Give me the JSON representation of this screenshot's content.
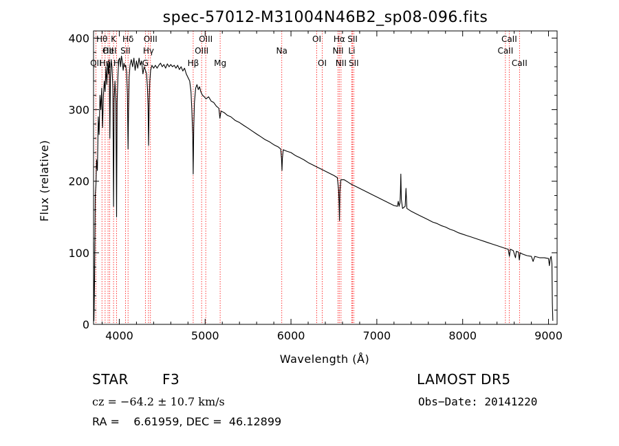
{
  "chart_data": {
    "type": "line",
    "title": "spec-57012-M31004N46B2_sp08-096.fits",
    "xlabel": "Wavelength (Å)",
    "ylabel": "Flux (relative)",
    "xlim": [
      3700,
      9100
    ],
    "ylim": [
      0,
      410
    ],
    "xticks": [
      4000,
      5000,
      6000,
      7000,
      8000,
      9000
    ],
    "xtick_labels": [
      "4000",
      "5000",
      "6000",
      "7000",
      "8000",
      "9000"
    ],
    "yticks": [
      0,
      100,
      200,
      300,
      400
    ],
    "ytick_labels": [
      "0",
      "100",
      "200",
      "300",
      "400"
    ],
    "grid": false,
    "series": [
      {
        "color": "#000000",
        "points": [
          [
            3700,
            115
          ],
          [
            3705,
            5
          ],
          [
            3712,
            60
          ],
          [
            3720,
            180
          ],
          [
            3728,
            195
          ],
          [
            3735,
            230
          ],
          [
            3745,
            215
          ],
          [
            3755,
            290
          ],
          [
            3765,
            265
          ],
          [
            3775,
            320
          ],
          [
            3785,
            300
          ],
          [
            3795,
            330
          ],
          [
            3805,
            275
          ],
          [
            3815,
            320
          ],
          [
            3825,
            340
          ],
          [
            3835,
            325
          ],
          [
            3845,
            360
          ],
          [
            3855,
            335
          ],
          [
            3865,
            365
          ],
          [
            3875,
            350
          ],
          [
            3880,
            370
          ],
          [
            3885,
            345
          ],
          [
            3890,
            260
          ],
          [
            3897,
            345
          ],
          [
            3905,
            370
          ],
          [
            3915,
            360
          ],
          [
            3925,
            330
          ],
          [
            3933,
            165
          ],
          [
            3940,
            315
          ],
          [
            3950,
            340
          ],
          [
            3960,
            310
          ],
          [
            3968,
            150
          ],
          [
            3975,
            310
          ],
          [
            3985,
            350
          ],
          [
            3995,
            370
          ],
          [
            4005,
            372
          ],
          [
            4015,
            360
          ],
          [
            4025,
            375
          ],
          [
            4035,
            368
          ],
          [
            4045,
            355
          ],
          [
            4055,
            365
          ],
          [
            4065,
            360
          ],
          [
            4075,
            362
          ],
          [
            4085,
            352
          ],
          [
            4095,
            320
          ],
          [
            4102,
            245
          ],
          [
            4108,
            300
          ],
          [
            4115,
            345
          ],
          [
            4125,
            362
          ],
          [
            4140,
            370
          ],
          [
            4155,
            360
          ],
          [
            4170,
            372
          ],
          [
            4185,
            355
          ],
          [
            4200,
            368
          ],
          [
            4215,
            358
          ],
          [
            4230,
            372
          ],
          [
            4245,
            362
          ],
          [
            4260,
            368
          ],
          [
            4275,
            350
          ],
          [
            4290,
            360
          ],
          [
            4305,
            355
          ],
          [
            4318,
            350
          ],
          [
            4328,
            330
          ],
          [
            4335,
            305
          ],
          [
            4341,
            250
          ],
          [
            4348,
            310
          ],
          [
            4355,
            340
          ],
          [
            4365,
            355
          ],
          [
            4380,
            362
          ],
          [
            4400,
            358
          ],
          [
            4420,
            362
          ],
          [
            4440,
            358
          ],
          [
            4460,
            362
          ],
          [
            4480,
            365
          ],
          [
            4500,
            360
          ],
          [
            4520,
            363
          ],
          [
            4540,
            358
          ],
          [
            4560,
            364
          ],
          [
            4580,
            360
          ],
          [
            4600,
            363
          ],
          [
            4620,
            360
          ],
          [
            4640,
            362
          ],
          [
            4660,
            358
          ],
          [
            4680,
            362
          ],
          [
            4700,
            356
          ],
          [
            4720,
            360
          ],
          [
            4740,
            354
          ],
          [
            4760,
            358
          ],
          [
            4780,
            350
          ],
          [
            4800,
            345
          ],
          [
            4820,
            340
          ],
          [
            4835,
            325
          ],
          [
            4845,
            300
          ],
          [
            4855,
            265
          ],
          [
            4861,
            210
          ],
          [
            4867,
            275
          ],
          [
            4875,
            310
          ],
          [
            4890,
            330
          ],
          [
            4905,
            335
          ],
          [
            4920,
            328
          ],
          [
            4935,
            332
          ],
          [
            4950,
            325
          ],
          [
            4970,
            320
          ],
          [
            4990,
            318
          ],
          [
            5010,
            315
          ],
          [
            5040,
            318
          ],
          [
            5070,
            312
          ],
          [
            5100,
            310
          ],
          [
            5130,
            305
          ],
          [
            5160,
            302
          ],
          [
            5172,
            288
          ],
          [
            5185,
            298
          ],
          [
            5220,
            296
          ],
          [
            5260,
            292
          ],
          [
            5300,
            290
          ],
          [
            5350,
            285
          ],
          [
            5400,
            282
          ],
          [
            5450,
            278
          ],
          [
            5500,
            274
          ],
          [
            5550,
            270
          ],
          [
            5600,
            266
          ],
          [
            5650,
            262
          ],
          [
            5700,
            258
          ],
          [
            5750,
            255
          ],
          [
            5800,
            251
          ],
          [
            5850,
            248
          ],
          [
            5880,
            245
          ],
          [
            5890,
            232
          ],
          [
            5895,
            215
          ],
          [
            5900,
            232
          ],
          [
            5910,
            244
          ],
          [
            5950,
            242
          ],
          [
            6000,
            240
          ],
          [
            6050,
            236
          ],
          [
            6100,
            233
          ],
          [
            6150,
            230
          ],
          [
            6200,
            226
          ],
          [
            6250,
            223
          ],
          [
            6300,
            220
          ],
          [
            6350,
            217
          ],
          [
            6400,
            214
          ],
          [
            6450,
            211
          ],
          [
            6500,
            208
          ],
          [
            6540,
            205
          ],
          [
            6555,
            188
          ],
          [
            6560,
            170
          ],
          [
            6565,
            145
          ],
          [
            6570,
            185
          ],
          [
            6580,
            202
          ],
          [
            6620,
            202
          ],
          [
            6660,
            199
          ],
          [
            6700,
            196
          ],
          [
            6750,
            193
          ],
          [
            6800,
            190
          ],
          [
            6850,
            187
          ],
          [
            6900,
            184
          ],
          [
            6950,
            181
          ],
          [
            7000,
            178
          ],
          [
            7050,
            175
          ],
          [
            7100,
            172
          ],
          [
            7150,
            169
          ],
          [
            7200,
            166
          ],
          [
            7240,
            165
          ],
          [
            7250,
            172
          ],
          [
            7260,
            165
          ],
          [
            7270,
            170
          ],
          [
            7275,
            185
          ],
          [
            7280,
            210
          ],
          [
            7285,
            175
          ],
          [
            7300,
            162
          ],
          [
            7330,
            165
          ],
          [
            7340,
            190
          ],
          [
            7345,
            175
          ],
          [
            7350,
            162
          ],
          [
            7400,
            158
          ],
          [
            7450,
            155
          ],
          [
            7500,
            152
          ],
          [
            7550,
            149
          ],
          [
            7600,
            146
          ],
          [
            7650,
            143
          ],
          [
            7700,
            141
          ],
          [
            7750,
            138
          ],
          [
            7800,
            136
          ],
          [
            7850,
            133
          ],
          [
            7900,
            131
          ],
          [
            7950,
            128
          ],
          [
            8000,
            126
          ],
          [
            8050,
            124
          ],
          [
            8100,
            122
          ],
          [
            8150,
            120
          ],
          [
            8200,
            118
          ],
          [
            8250,
            116
          ],
          [
            8300,
            114
          ],
          [
            8350,
            112
          ],
          [
            8400,
            110
          ],
          [
            8450,
            108
          ],
          [
            8500,
            106
          ],
          [
            8530,
            105
          ],
          [
            8545,
            95
          ],
          [
            8555,
            105
          ],
          [
            8590,
            103
          ],
          [
            8615,
            93
          ],
          [
            8625,
            102
          ],
          [
            8650,
            101
          ],
          [
            8660,
            90
          ],
          [
            8670,
            100
          ],
          [
            8700,
            98
          ],
          [
            8750,
            96
          ],
          [
            8800,
            95
          ],
          [
            8820,
            88
          ],
          [
            8840,
            95
          ],
          [
            8870,
            94
          ],
          [
            8900,
            93
          ],
          [
            8950,
            93
          ],
          [
            9000,
            92
          ],
          [
            9010,
            82
          ],
          [
            9020,
            92
          ],
          [
            9030,
            95
          ],
          [
            9040,
            85
          ],
          [
            9045,
            30
          ],
          [
            9050,
            5
          ]
        ]
      }
    ],
    "line_markers": {
      "color": "#ff0000",
      "lines": [
        {
          "x": 3727,
          "label": "OII",
          "row": 3
        },
        {
          "x": 3798,
          "label": "Hθ",
          "row": 1
        },
        {
          "x": 3835,
          "label": "Hη",
          "row": 3
        },
        {
          "x": 3869,
          "label": "OII",
          "row": 2
        },
        {
          "x": 3889,
          "label": "HeI",
          "row": 2
        },
        {
          "x": 3933,
          "label": "K",
          "row": 1
        },
        {
          "x": 3968,
          "label": "H",
          "row": 3
        },
        {
          "x": 4072,
          "label": "SII",
          "row": 2
        },
        {
          "x": 4102,
          "label": "Hδ",
          "row": 1
        },
        {
          "x": 4304,
          "label": "G",
          "row": 3
        },
        {
          "x": 4340,
          "label": "Hγ",
          "row": 2
        },
        {
          "x": 4363,
          "label": "OIII",
          "row": 1
        },
        {
          "x": 4861,
          "label": "Hβ",
          "row": 3
        },
        {
          "x": 4959,
          "label": "OIII",
          "row": 2
        },
        {
          "x": 5007,
          "label": "OIII",
          "row": 1
        },
        {
          "x": 5175,
          "label": "Mg",
          "row": 3
        },
        {
          "x": 5893,
          "label": "Na",
          "row": 2
        },
        {
          "x": 6300,
          "label": "OI",
          "row": 1
        },
        {
          "x": 6364,
          "label": "OI",
          "row": 3
        },
        {
          "x": 6548,
          "label": "NII",
          "row": 2
        },
        {
          "x": 6563,
          "label": "Hα",
          "row": 1
        },
        {
          "x": 6583,
          "label": "NII",
          "row": 3
        },
        {
          "x": 6708,
          "label": "Li",
          "row": 2
        },
        {
          "x": 6717,
          "label": "SII",
          "row": 1
        },
        {
          "x": 6731,
          "label": "SII",
          "row": 3
        },
        {
          "x": 8498,
          "label": "CaII",
          "row": 2
        },
        {
          "x": 8542,
          "label": "CaII",
          "row": 1
        },
        {
          "x": 8662,
          "label": "CaII",
          "row": 3
        }
      ]
    }
  },
  "footer": {
    "class_label": "STAR",
    "subclass": "F3",
    "survey": "LAMOST DR5",
    "cz": "cz = −64.2 ± 10.7 km/s",
    "obs_date": "Obs−Date: 20141220",
    "coords": "RA =    6.61959, DEC =  46.12899"
  }
}
